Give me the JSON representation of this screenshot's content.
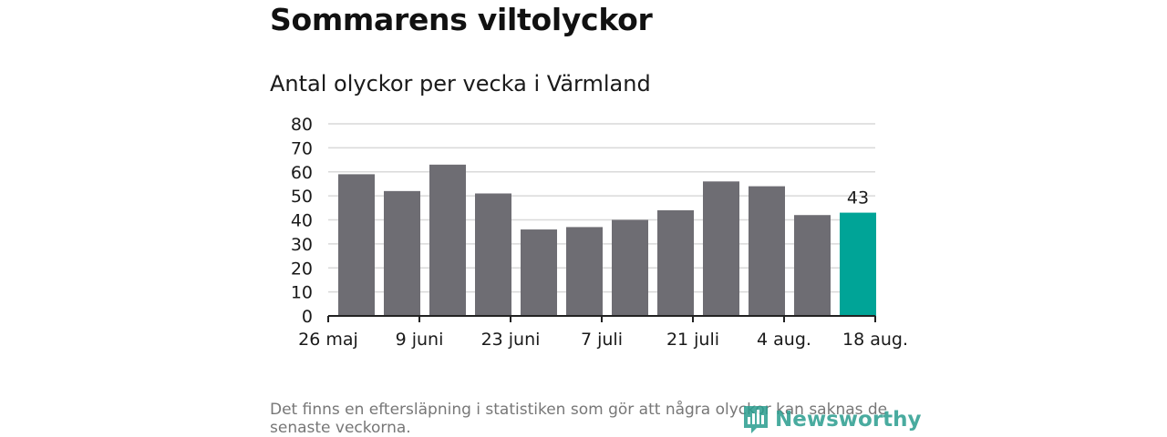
{
  "title": "Sommarens viltolyckor",
  "subtitle": "Antal olyckor per vecka i Värmland",
  "footnote": "Det finns en eftersläpning i statistiken som gör att några olyckor kan saknas de senaste veckorna.",
  "brand": "Newsworthy",
  "colors": {
    "bar": "#6e6d73",
    "highlight": "#00a497",
    "grid": "#d9d9d9",
    "axis": "#222222",
    "text": "#1a1a1a"
  },
  "chart_data": {
    "type": "bar",
    "weeks": 12,
    "values": [
      59,
      52,
      63,
      51,
      36,
      37,
      40,
      44,
      56,
      54,
      42,
      43
    ],
    "highlight_index": 11,
    "highlight_label": "43",
    "x_tick_labels": [
      "26 maj",
      "9 juni",
      "23 juni",
      "7 juli",
      "21 juli",
      "4 aug.",
      "18 aug."
    ],
    "y_ticks": [
      0,
      10,
      20,
      30,
      40,
      50,
      60,
      70,
      80
    ],
    "ylim": [
      0,
      80
    ],
    "grid": true
  }
}
